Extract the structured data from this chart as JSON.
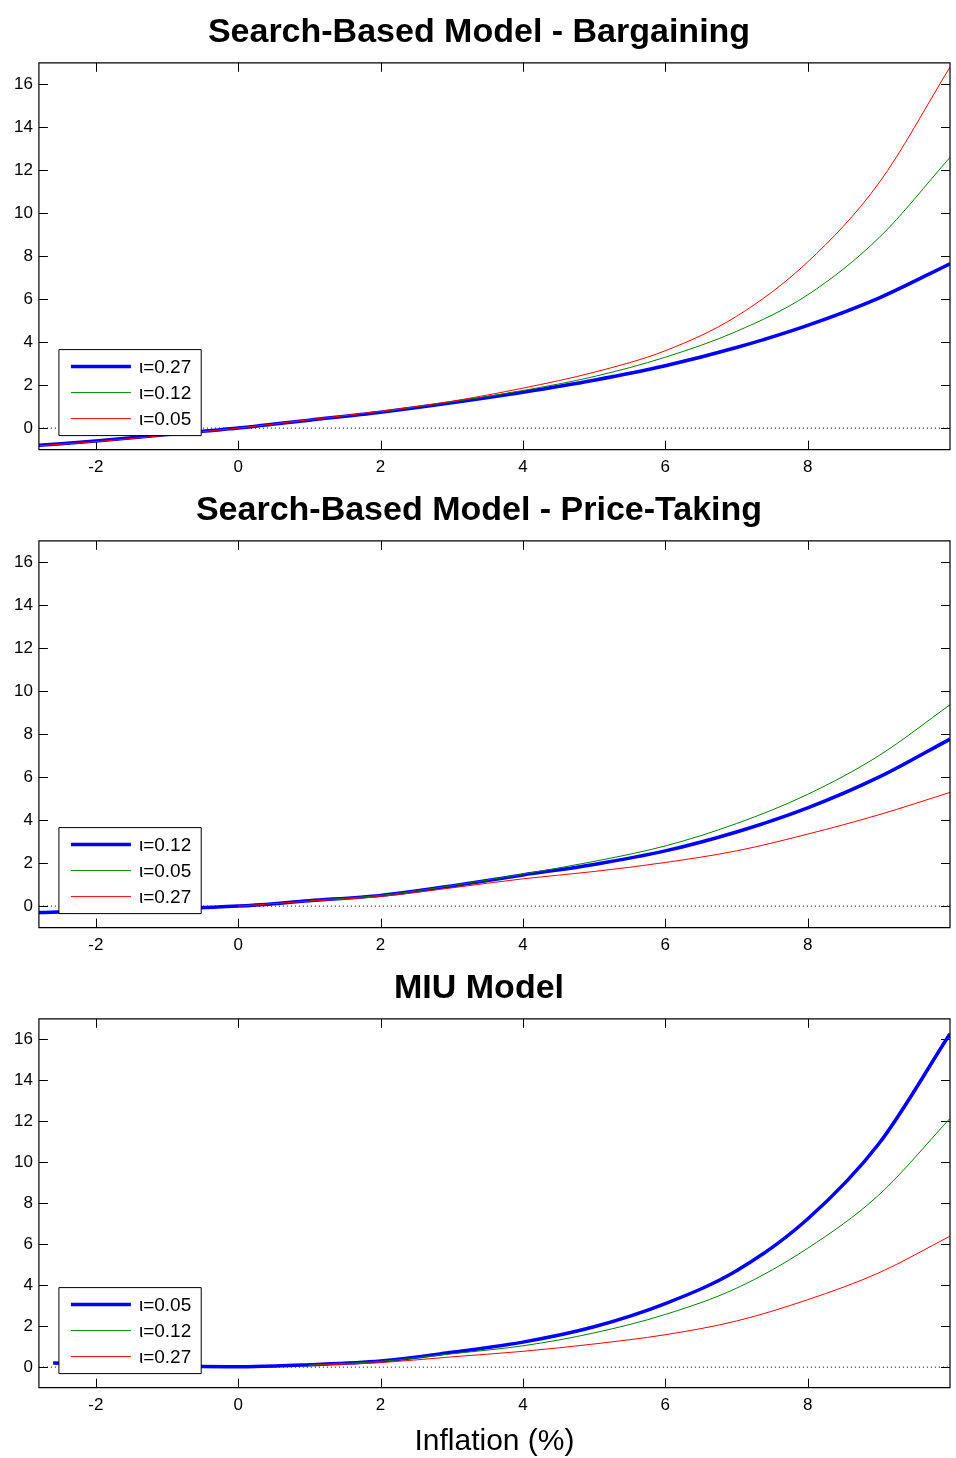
{
  "chart_data": [
    {
      "type": "line",
      "title": "Search-Based Model - Bargaining",
      "x": [
        -2.8,
        -2,
        -1,
        0,
        1,
        2,
        3,
        4,
        5,
        6,
        7,
        8,
        9,
        10
      ],
      "xlim": [
        -2.8,
        10
      ],
      "xticks": [
        -2,
        0,
        2,
        4,
        6,
        8
      ],
      "ylim": [
        -1,
        17
      ],
      "yticks": [
        0,
        2,
        4,
        6,
        8,
        10,
        12,
        14,
        16
      ],
      "grid": false,
      "legend": "bottom left",
      "marker": "none",
      "line_style": "solid",
      "ref_lines": [
        {
          "axis": "y",
          "value": 0,
          "line_style": "dotted",
          "color": "#000000"
        }
      ],
      "series": [
        {
          "name": "ι=0.27",
          "color": "#0000ff",
          "values": [
            -0.8,
            -0.6,
            -0.3,
            0,
            0.37,
            0.74,
            1.18,
            1.67,
            2.23,
            2.9,
            3.75,
            4.78,
            6.05,
            7.65
          ]
        },
        {
          "name": "ι=0.12",
          "color": "#008000",
          "values": [
            null,
            null,
            null,
            null,
            null,
            0.76,
            1.22,
            1.75,
            2.4,
            3.3,
            4.5,
            6.2,
            8.85,
            12.6
          ]
        },
        {
          "name": "ι=0.05",
          "color": "#ff0000",
          "values": [
            -0.82,
            -0.63,
            null,
            0,
            0.39,
            0.78,
            1.25,
            1.86,
            2.6,
            3.6,
            5.2,
            7.73,
            11.4,
            16.8
          ]
        }
      ]
    },
    {
      "type": "line",
      "title": "Search-Based Model - Price-Taking",
      "x": [
        -2.8,
        -2,
        -1,
        0,
        1,
        2,
        3,
        4,
        5,
        6,
        7,
        8,
        9,
        10
      ],
      "xlim": [
        -2.8,
        10
      ],
      "xticks": [
        -2,
        0,
        2,
        4,
        6,
        8
      ],
      "ylim": [
        -1,
        17
      ],
      "yticks": [
        0,
        2,
        4,
        6,
        8,
        10,
        12,
        14,
        16
      ],
      "grid": false,
      "legend": "bottom left",
      "marker": "none",
      "line_style": "solid",
      "ref_lines": [
        {
          "axis": "y",
          "value": 0,
          "line_style": "dotted",
          "color": "#000000"
        }
      ],
      "series": [
        {
          "name": "ι=0.12",
          "color": "#0000ff",
          "values": [
            -0.3,
            null,
            null,
            0,
            0.25,
            0.5,
            0.94,
            1.45,
            1.94,
            2.57,
            3.45,
            4.57,
            6.0,
            7.77
          ]
        },
        {
          "name": "ι=0.05",
          "color": "#008000",
          "values": [
            null,
            null,
            null,
            null,
            0.25,
            0.5,
            0.95,
            1.49,
            2.08,
            2.8,
            3.84,
            5.2,
            7.0,
            9.37
          ]
        },
        {
          "name": "ι=0.27",
          "color": "#ff0000",
          "values": [
            null,
            null,
            null,
            0,
            0.23,
            0.45,
            0.85,
            1.27,
            1.61,
            2.03,
            2.57,
            3.35,
            4.25,
            5.29
          ]
        }
      ]
    },
    {
      "type": "line",
      "title": "MIU Model",
      "xlabel": "Inflation (%)",
      "x": [
        -2.6,
        -2,
        -1,
        0,
        1,
        2,
        3,
        4,
        5,
        6,
        7,
        8,
        9,
        10
      ],
      "xlim": [
        -2.8,
        10
      ],
      "xticks": [
        -2,
        0,
        2,
        4,
        6,
        8
      ],
      "ylim": [
        -1,
        17
      ],
      "yticks": [
        0,
        2,
        4,
        6,
        8,
        10,
        12,
        14,
        16
      ],
      "grid": false,
      "legend": "bottom left",
      "marker": "none",
      "line_style": "solid",
      "ref_lines": [
        {
          "axis": "y",
          "value": 0,
          "line_style": "dotted",
          "color": "#000000"
        }
      ],
      "series": [
        {
          "name": "ι=0.05",
          "color": "#0000ff",
          "values": [
            0.2,
            null,
            null,
            0.02,
            0.12,
            0.3,
            0.72,
            1.22,
            1.97,
            3.1,
            4.7,
            7.23,
            10.9,
            16.27
          ]
        },
        {
          "name": "ι=0.12",
          "color": "#008000",
          "values": [
            null,
            null,
            null,
            null,
            0.1,
            0.28,
            0.65,
            1.04,
            1.67,
            2.57,
            3.85,
            5.8,
            8.4,
            12.14
          ]
        },
        {
          "name": "ι=0.27",
          "color": "#ff0000",
          "values": [
            null,
            null,
            null,
            null,
            0.08,
            0.22,
            0.5,
            0.77,
            1.13,
            1.58,
            2.25,
            3.29,
            4.6,
            6.39
          ]
        }
      ]
    }
  ]
}
